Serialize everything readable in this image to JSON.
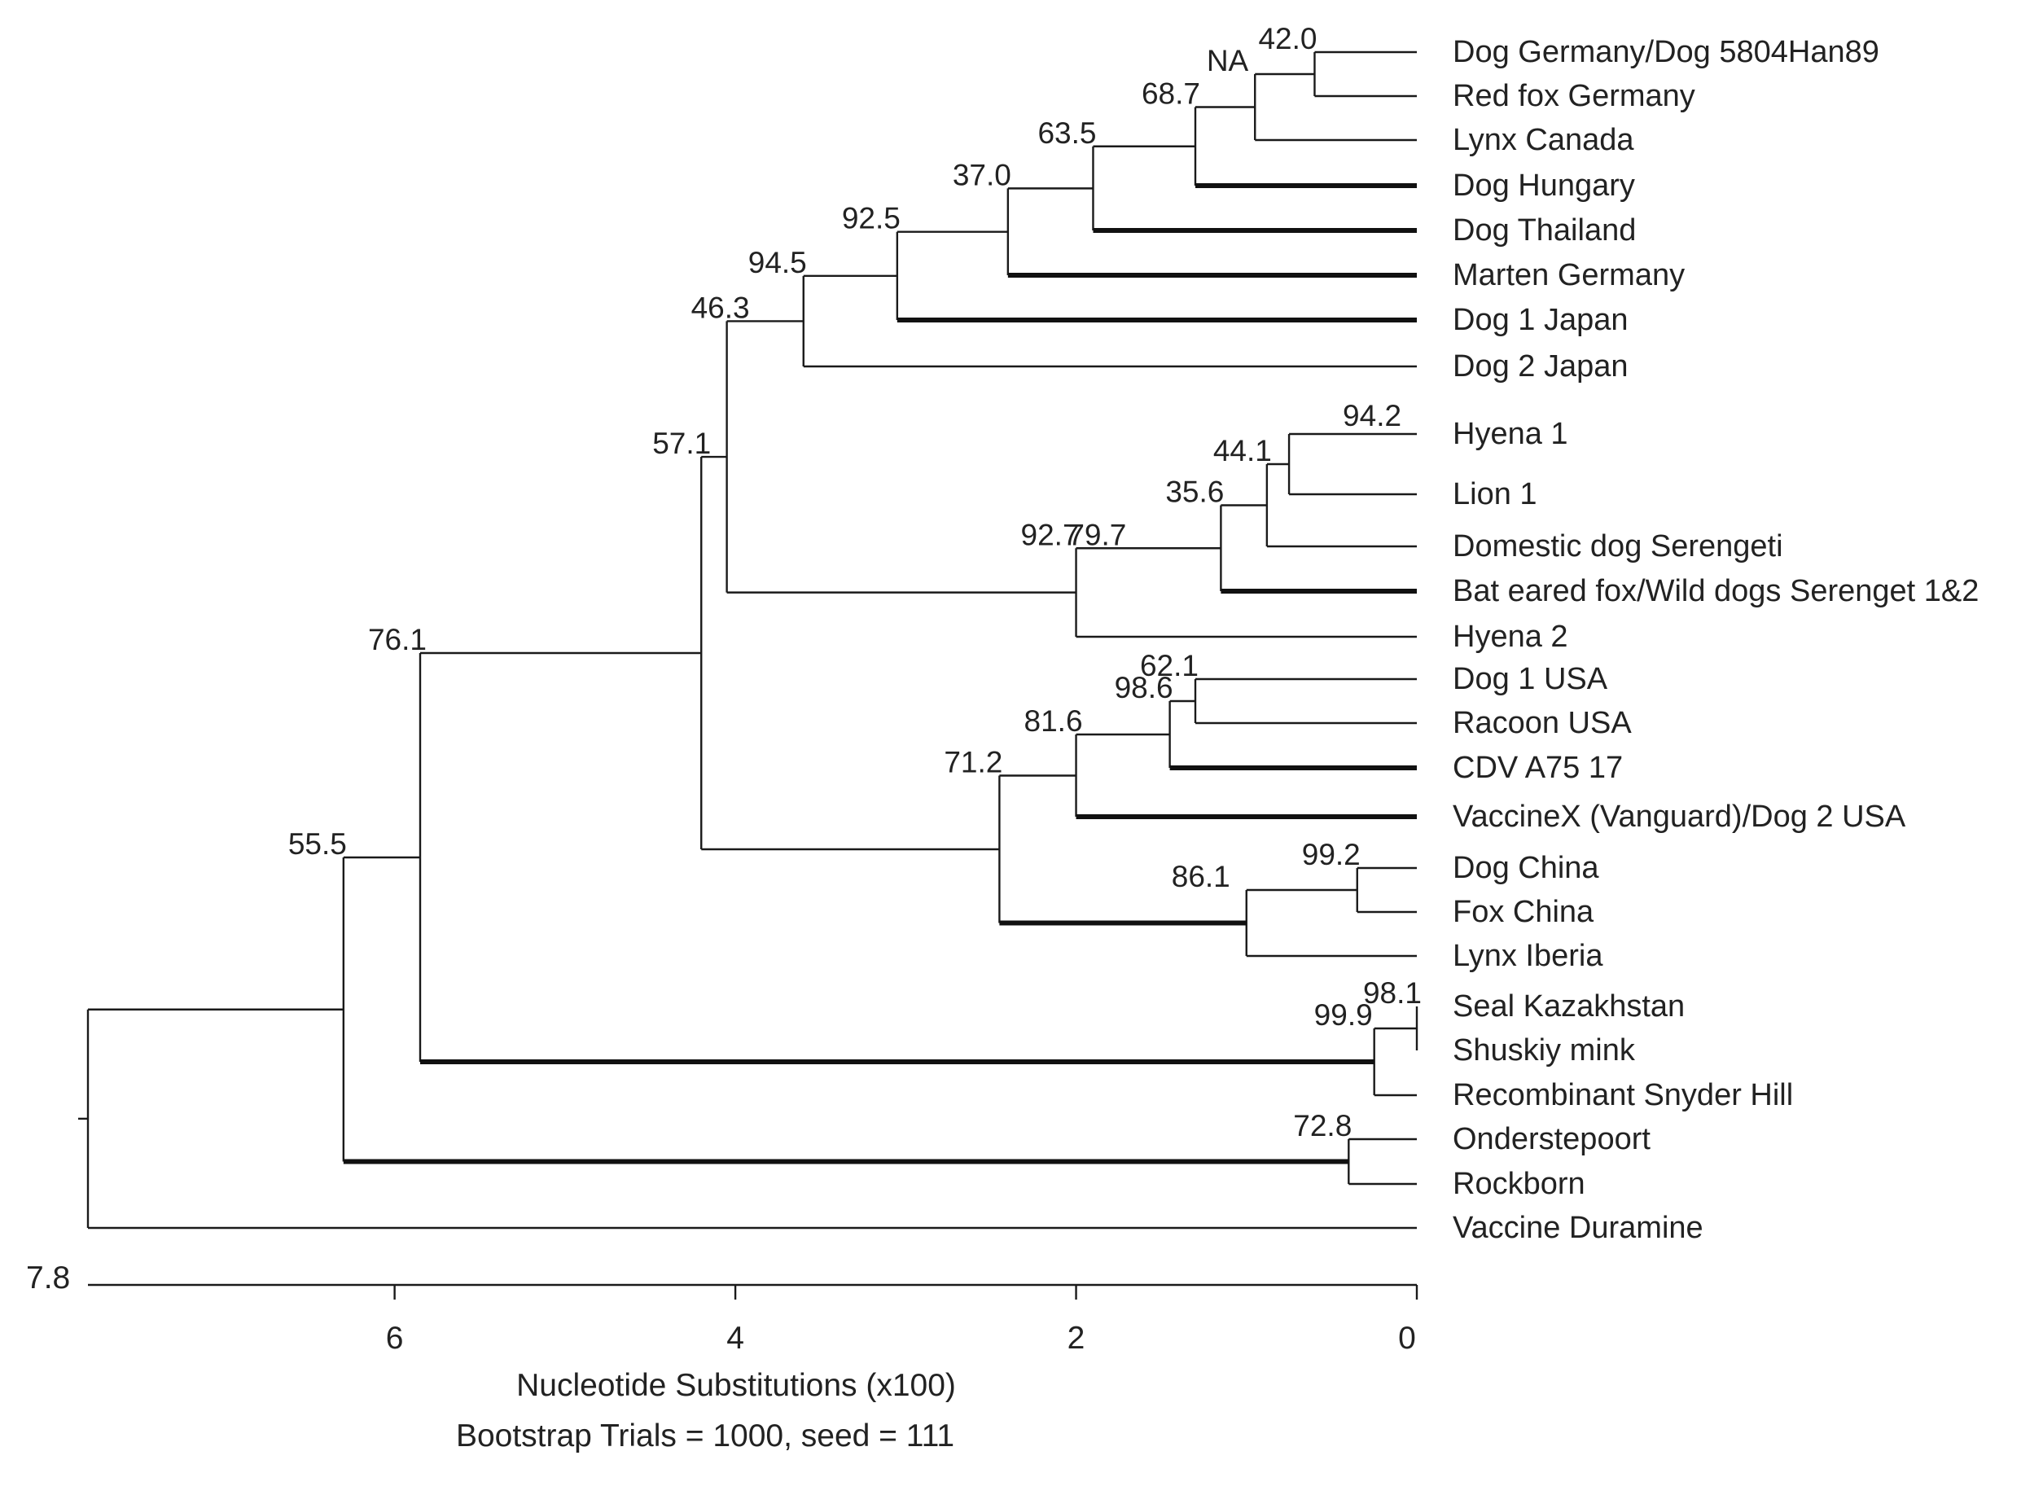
{
  "chart_data": {
    "type": "dendrogram",
    "root_label": "7.8",
    "xlabel": "Nucleotide Substitutions (x100)",
    "footer": "Bootstrap Trials = 1000, seed = 111",
    "xlim": [
      7.8,
      0
    ],
    "ticks": [
      6,
      4,
      2,
      0
    ],
    "taxa": [
      "Dog Germany/Dog 5804Han89",
      "Red fox Germany",
      "Lynx Canada",
      "Dog Hungary",
      "Dog Thailand",
      "Marten Germany",
      "Dog 1 Japan",
      "Dog 2 Japan",
      "Hyena 1",
      "Lion 1",
      "Domestic dog Serengeti",
      "Bat eared fox/Wild dogs Serenget 1&2",
      "Hyena 2",
      "Dog 1 USA",
      "Racoon USA",
      "CDV A75 17",
      "VaccineX (Vanguard)/Dog 2 USA",
      "Dog China",
      "Fox China",
      "Lynx Iberia",
      "Seal Kazakhstan",
      "Shuskiy mink",
      "Recombinant Snyder Hill",
      "Onderstepoort",
      "Rockborn",
      "Vaccine Duramine"
    ],
    "nodes": [
      {
        "id": "n420",
        "support": "42.0",
        "depth": 0.6,
        "children": [
          "t0",
          "t1"
        ]
      },
      {
        "id": "nNA",
        "support": "NA",
        "depth": 0.95,
        "children": [
          "n420",
          "t2"
        ]
      },
      {
        "id": "n687",
        "support": "68.7",
        "depth": 1.3,
        "children": [
          "nNA",
          "t3"
        ]
      },
      {
        "id": "n635",
        "support": "63.5",
        "depth": 1.9,
        "children": [
          "n687",
          "t4"
        ]
      },
      {
        "id": "n370",
        "support": "37.0",
        "depth": 2.4,
        "children": [
          "n635",
          "t5"
        ]
      },
      {
        "id": "n925",
        "support": "92.5",
        "depth": 3.05,
        "children": [
          "n370",
          "t6"
        ]
      },
      {
        "id": "n945",
        "support": "94.5",
        "depth": 3.6,
        "children": [
          "n925",
          "t7"
        ]
      },
      {
        "id": "n942",
        "support": "94.2",
        "depth": 0.75,
        "children": [
          "t8",
          "t9"
        ]
      },
      {
        "id": "n441",
        "support": "44.1",
        "depth": 0.88,
        "children": [
          "n942",
          "t10"
        ]
      },
      {
        "id": "n356",
        "support": "35.6",
        "depth": 1.15,
        "children": [
          "n441",
          "t11"
        ]
      },
      {
        "id": "n797",
        "support": "79.7",
        "depth": 1.15,
        "children": [
          "n356"
        ]
      },
      {
        "id": "n927",
        "support": "92.7",
        "depth": 2.0,
        "children": [
          "n797",
          "t12"
        ]
      },
      {
        "id": "n463",
        "support": "46.3",
        "depth": 4.05,
        "children": [
          "n945",
          "n927"
        ]
      },
      {
        "id": "n621",
        "support": "62.1",
        "depth": 1.3,
        "children": [
          "t13",
          "t14"
        ]
      },
      {
        "id": "n986",
        "support": "98.6",
        "depth": 1.45,
        "children": [
          "n621",
          "t15"
        ]
      },
      {
        "id": "n816",
        "support": "81.6",
        "depth": 2.0,
        "children": [
          "n986",
          "t16"
        ]
      },
      {
        "id": "n992",
        "support": "99.2",
        "depth": 0.35,
        "children": [
          "t17",
          "t18"
        ]
      },
      {
        "id": "n861",
        "support": "86.1",
        "depth": 1.0,
        "children": [
          "n992",
          "t19"
        ]
      },
      {
        "id": "n712",
        "support": "71.2",
        "depth": 2.45,
        "children": [
          "n816",
          "n861"
        ]
      },
      {
        "id": "n571",
        "support": "57.1",
        "depth": 4.2,
        "children": [
          "n463",
          "n712"
        ]
      },
      {
        "id": "n981",
        "support": "98.1",
        "depth": 0.0,
        "children": [
          "t20",
          "t21"
        ]
      },
      {
        "id": "n999",
        "support": "99.9",
        "depth": 0.25,
        "children": [
          "n981",
          "t22"
        ]
      },
      {
        "id": "n761",
        "support": "76.1",
        "depth": 5.85,
        "children": [
          "n571",
          "n999"
        ]
      },
      {
        "id": "n728",
        "support": "72.8",
        "depth": 0.4,
        "children": [
          "t23",
          "t24"
        ]
      },
      {
        "id": "n555",
        "support": "55.5",
        "depth": 6.3,
        "children": [
          "n761",
          "n728"
        ]
      },
      {
        "id": "root",
        "support": "",
        "depth": 7.8,
        "children": [
          "n555",
          "t25"
        ]
      }
    ]
  }
}
